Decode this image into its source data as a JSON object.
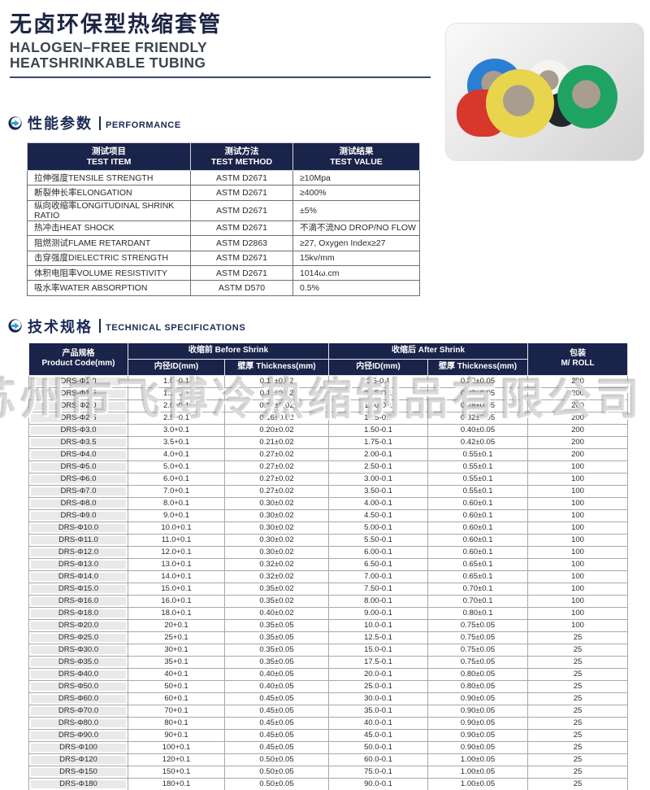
{
  "header": {
    "title_cn": "无卤环保型热缩套管",
    "title_en_line1": "HALOGEN–FREE FRIENDLY",
    "title_en_line2": "HEATSHRINKABLE TUBING"
  },
  "watermark": "苏州市飞博冷热缩制品有限公司",
  "sections": {
    "performance": {
      "cn": "性能参数",
      "en": "PERFORMANCE"
    },
    "specs": {
      "cn": "技术规格",
      "en": "TECHNICAL SPECIFICATIONS"
    }
  },
  "performance_table": {
    "headers": [
      {
        "cn": "测试项目",
        "en": "TEST ITEM"
      },
      {
        "cn": "测试方法",
        "en": "TEST METHOD"
      },
      {
        "cn": "测试结果",
        "en": "TEST VALUE"
      }
    ],
    "rows": [
      [
        "拉伸强度TENSILE STRENGTH",
        "ASTM D2671",
        "≥10Mpa"
      ],
      [
        "断裂伸长率ELONGATION",
        "ASTM D2671",
        "≥400%"
      ],
      [
        "纵向收缩率LONGITUDINAL SHRINK RATIO",
        "ASTM D2671",
        "±5%"
      ],
      [
        "热冲击HEAT SHOCK",
        "ASTM D2671",
        "不滴不流NO DROP/NO FLOW"
      ],
      [
        "阻燃测试FLAME RETARDANT",
        "ASTM D2863",
        "≥27, Oxygen Index≥27"
      ],
      [
        "击穿强度DIELECTRIC STRENGTH",
        "ASTM D2671",
        "15kv/mm"
      ],
      [
        "体积电阻率VOLUME RESISTIVITY",
        "ASTM D2671",
        "1014ω.cm"
      ],
      [
        "吸水率WATER ABSORPTION",
        "ASTM D570",
        "0.5%"
      ]
    ]
  },
  "spec_table": {
    "col1": {
      "cn": "产品规格",
      "en": "Product Code(mm)"
    },
    "before": {
      "label": "收缩前 Before Shrink",
      "id": "内径ID(mm)",
      "thickness": "壁厚 Thickness(mm)"
    },
    "after": {
      "label": "收缩后 After Shrink",
      "id": "内径ID(mm)",
      "thickness": "壁厚 Thickness(mm)"
    },
    "pack": {
      "cn": "包装",
      "en": "M/ ROLL"
    },
    "rows": [
      [
        "DRS-Φ1.0",
        "1.0+0.1",
        "0.11±0.02",
        "0.5-0.1",
        "0.22±0.05",
        "200"
      ],
      [
        "DRS-Φ1.5",
        "1.5+0.1",
        "0.11±0.02",
        "0.75-0.1",
        "0.22±0.05",
        "200"
      ],
      [
        "DRS-Φ2.0",
        "2.0+0.1",
        "0.14±0.02",
        "1.00-0.1",
        "0.28±0.05",
        "200"
      ],
      [
        "DRS-Φ2.5",
        "2.5+0.1",
        "0.16±0.02",
        "1.25-0.1",
        "0.32±0.05",
        "200"
      ],
      [
        "DRS-Φ3.0",
        "3.0+0.1",
        "0.20±0.02",
        "1.50-0.1",
        "0.40±0.05",
        "200"
      ],
      [
        "DRS-Φ3.5",
        "3.5+0.1",
        "0.21±0.02",
        "1.75-0.1",
        "0.42±0.05",
        "200"
      ],
      [
        "DRS-Φ4.0",
        "4.0+0.1",
        "0.27±0.02",
        "2.00-0.1",
        "0.55±0.1",
        "200"
      ],
      [
        "DRS-Φ5.0",
        "5.0+0.1",
        "0.27±0.02",
        "2.50-0.1",
        "0.55±0.1",
        "100"
      ],
      [
        "DRS-Φ6.0",
        "6.0+0.1",
        "0.27±0.02",
        "3.00-0.1",
        "0.55±0.1",
        "100"
      ],
      [
        "DRS-Φ7.0",
        "7.0+0.1",
        "0.27±0.02",
        "3.50-0.1",
        "0.55±0.1",
        "100"
      ],
      [
        "DRS-Φ8.0",
        "8.0+0.1",
        "0.30±0.02",
        "4.00-0.1",
        "0.60±0.1",
        "100"
      ],
      [
        "DRS-Φ9.0",
        "9.0+0.1",
        "0.30±0.02",
        "4.50-0.1",
        "0.60±0.1",
        "100"
      ],
      [
        "DRS-Φ10.0",
        "10.0+0.1",
        "0.30±0.02",
        "5.00-0.1",
        "0.60±0.1",
        "100"
      ],
      [
        "DRS-Φ11.0",
        "11.0+0.1",
        "0.30±0.02",
        "5.50-0.1",
        "0.60±0.1",
        "100"
      ],
      [
        "DRS-Φ12.0",
        "12.0+0.1",
        "0.30±0.02",
        "6.00-0.1",
        "0.60±0.1",
        "100"
      ],
      [
        "DRS-Φ13.0",
        "13.0+0.1",
        "0.32±0.02",
        "6.50-0.1",
        "0.65±0.1",
        "100"
      ],
      [
        "DRS-Φ14.0",
        "14.0+0.1",
        "0.32±0.02",
        "7.00-0.1",
        "0.65±0.1",
        "100"
      ],
      [
        "DRS-Φ15.0",
        "15.0+0.1",
        "0.35±0.02",
        "7.50-0.1",
        "0.70±0.1",
        "100"
      ],
      [
        "DRS-Φ16.0",
        "16.0+0.1",
        "0.35±0.02",
        "8.00-0.1",
        "0.70±0.1",
        "100"
      ],
      [
        "DRS-Φ18.0",
        "18.0+0.1",
        "0.40±0.02",
        "9.00-0.1",
        "0.80±0.1",
        "100"
      ],
      [
        "DRS-Φ20.0",
        "20+0.1",
        "0.35±0.05",
        "10.0-0.1",
        "0.75±0.05",
        "100"
      ],
      [
        "DRS-Φ25.0",
        "25+0.1",
        "0.35±0.05",
        "12.5-0.1",
        "0.75±0.05",
        "25"
      ],
      [
        "DRS-Φ30.0",
        "30+0.1",
        "0.35±0.05",
        "15.0-0.1",
        "0.75±0.05",
        "25"
      ],
      [
        "DRS-Φ35.0",
        "35+0.1",
        "0.35±0.05",
        "17.5-0.1",
        "0.75±0.05",
        "25"
      ],
      [
        "DRS-Φ40.0",
        "40+0.1",
        "0.40±0.05",
        "20.0-0.1",
        "0.80±0.05",
        "25"
      ],
      [
        "DRS-Φ50.0",
        "50+0.1",
        "0.40±0.05",
        "25.0-0.1",
        "0.80±0.05",
        "25"
      ],
      [
        "DRS-Φ60.0",
        "60+0.1",
        "0.45±0.05",
        "30.0-0.1",
        "0.90±0.05",
        "25"
      ],
      [
        "DRS-Φ70.0",
        "70+0.1",
        "0.45±0.05",
        "35.0-0.1",
        "0.90±0.05",
        "25"
      ],
      [
        "DRS-Φ80.0",
        "80+0.1",
        "0.45±0.05",
        "40.0-0.1",
        "0.90±0.05",
        "25"
      ],
      [
        "DRS-Φ90.0",
        "90+0.1",
        "0.45±0.05",
        "45.0-0.1",
        "0.90±0.05",
        "25"
      ],
      [
        "DRS-Φ100",
        "100+0.1",
        "0.45±0.05",
        "50.0-0.1",
        "0.90±0.05",
        "25"
      ],
      [
        "DRS-Φ120",
        "120+0.1",
        "0.50±0.05",
        "60.0-0.1",
        "1.00±0.05",
        "25"
      ],
      [
        "DRS-Φ150",
        "150+0.1",
        "0.50±0.05",
        "75.0-0.1",
        "1.00±0.05",
        "25"
      ],
      [
        "DRS-Φ180",
        "180+0.1",
        "0.50±0.05",
        "90.0-0.1",
        "1.00±0.05",
        "25"
      ]
    ]
  },
  "photo": {
    "rolls": [
      {
        "name": "blue",
        "color": "#2a7fd4",
        "donut": true
      },
      {
        "name": "white",
        "color": "#f4f4f0",
        "donut": true
      },
      {
        "name": "red",
        "color": "#d8372c",
        "donut": false
      },
      {
        "name": "black",
        "color": "#23262b",
        "donut": false
      },
      {
        "name": "yellow",
        "color": "#e8d44d",
        "donut": true
      },
      {
        "name": "green",
        "color": "#1ea363",
        "donut": true
      }
    ]
  },
  "colors": {
    "accent_navy": "#1a2349",
    "accent_cyan": "#29a3dc",
    "code_cell_gray": "#e9e9e7"
  }
}
